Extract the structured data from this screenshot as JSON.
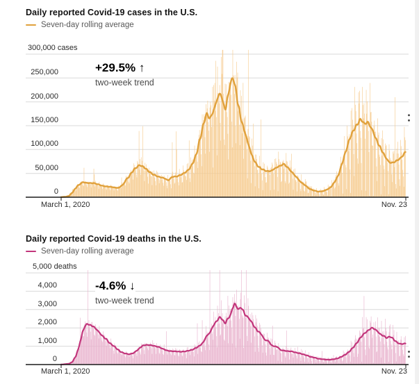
{
  "page": {
    "background": "#ffffff",
    "right_strip_color": "#f1f1f1"
  },
  "chart_data": [
    {
      "type": "bar+line",
      "title": "Daily reported Covid-19 cases in the U.S.",
      "legend": "Seven-day rolling average",
      "annotation": "+29.5% ↑",
      "annotation_sub": "two-week trend",
      "y_top_label": "300,000 cases",
      "x_start_label": "March 1, 2020",
      "x_end_label": "Nov. 23",
      "ylim": [
        0,
        300000
      ],
      "yticks": [
        {
          "label": "250,000",
          "value": 250000
        },
        {
          "label": "200,000",
          "value": 200000
        },
        {
          "label": "150,000",
          "value": 150000
        },
        {
          "label": "100,000",
          "value": 100000
        },
        {
          "label": "50,000",
          "value": 50000
        },
        {
          "label": "0",
          "value": 0
        }
      ],
      "line_color": "#E0A13C",
      "bar_color": "#F6CB8E",
      "axis_color": "#1a1a1a",
      "grid_color": "#d9d9d9",
      "days_total": 632,
      "end_marker_values": [
        172000,
        161000
      ],
      "avg_series_points": [
        [
          0,
          300
        ],
        [
          8,
          900
        ],
        [
          14,
          2500
        ],
        [
          20,
          9000
        ],
        [
          26,
          18000
        ],
        [
          31,
          25000
        ],
        [
          40,
          31500
        ],
        [
          47,
          30000
        ],
        [
          55,
          29500
        ],
        [
          60,
          29500
        ],
        [
          68,
          27000
        ],
        [
          75,
          24000
        ],
        [
          83,
          22500
        ],
        [
          92,
          21500
        ],
        [
          100,
          20000
        ],
        [
          105,
          19500
        ],
        [
          112,
          25000
        ],
        [
          122,
          40000
        ],
        [
          130,
          52000
        ],
        [
          135,
          60000
        ],
        [
          144,
          67000
        ],
        [
          150,
          64500
        ],
        [
          155,
          60000
        ],
        [
          162,
          53000
        ],
        [
          170,
          47000
        ],
        [
          180,
          42500
        ],
        [
          186,
          41000
        ],
        [
          190,
          39500
        ],
        [
          196,
          35500
        ],
        [
          205,
          43000
        ],
        [
          212,
          43500
        ],
        [
          220,
          47000
        ],
        [
          228,
          52000
        ],
        [
          235,
          59000
        ],
        [
          242,
          72000
        ],
        [
          248,
          90000
        ],
        [
          255,
          122000
        ],
        [
          261,
          152000
        ],
        [
          267,
          176000
        ],
        [
          271,
          167000
        ],
        [
          275,
          168000
        ],
        [
          281,
          186000
        ],
        [
          288,
          211000
        ],
        [
          293,
          218000
        ],
        [
          298,
          194000
        ],
        [
          302,
          184000
        ],
        [
          306,
          212000
        ],
        [
          310,
          235000
        ],
        [
          315,
          252000
        ],
        [
          320,
          230000
        ],
        [
          325,
          193000
        ],
        [
          331,
          160000
        ],
        [
          337,
          137000
        ],
        [
          344,
          110000
        ],
        [
          350,
          88000
        ],
        [
          356,
          73000
        ],
        [
          363,
          63000
        ],
        [
          370,
          58000
        ],
        [
          378,
          54500
        ],
        [
          385,
          55000
        ],
        [
          392,
          60000
        ],
        [
          400,
          65000
        ],
        [
          409,
          69500
        ],
        [
          416,
          62000
        ],
        [
          424,
          52000
        ],
        [
          432,
          42000
        ],
        [
          440,
          31500
        ],
        [
          448,
          25000
        ],
        [
          456,
          17500
        ],
        [
          464,
          14000
        ],
        [
          472,
          11800
        ],
        [
          480,
          12500
        ],
        [
          488,
          16000
        ],
        [
          495,
          21000
        ],
        [
          502,
          32000
        ],
        [
          509,
          46500
        ],
        [
          516,
          72000
        ],
        [
          523,
          98000
        ],
        [
          530,
          124000
        ],
        [
          537,
          141000
        ],
        [
          543,
          152000
        ],
        [
          549,
          163000
        ],
        [
          553,
          160000
        ],
        [
          557,
          153000
        ],
        [
          562,
          158000
        ],
        [
          567,
          150000
        ],
        [
          572,
          139000
        ],
        [
          578,
          122000
        ],
        [
          584,
          108000
        ],
        [
          590,
          95000
        ],
        [
          596,
          83000
        ],
        [
          602,
          73500
        ],
        [
          607,
          72000
        ],
        [
          612,
          74000
        ],
        [
          617,
          77500
        ],
        [
          622,
          81000
        ],
        [
          627,
          87000
        ],
        [
          632,
          95000
        ]
      ]
    },
    {
      "type": "bar+line",
      "title": "Daily reported Covid-19 deaths in the U.S.",
      "legend": "Seven-day rolling average",
      "annotation": "-4.6% ↓",
      "annotation_sub": "two-week trend",
      "y_top_label": "5,000 deaths",
      "x_start_label": "March 1, 2020",
      "x_end_label": "Nov. 23",
      "ylim": [
        0,
        5000
      ],
      "yticks": [
        {
          "label": "4,000",
          "value": 4000
        },
        {
          "label": "3,000",
          "value": 3000
        },
        {
          "label": "2,000",
          "value": 2000
        },
        {
          "label": "1,000",
          "value": 1000
        },
        {
          "label": "0",
          "value": 0
        }
      ],
      "line_color": "#C2357B",
      "bar_color": "#E9B3CE",
      "axis_color": "#1a1a1a",
      "grid_color": "#d9d9d9",
      "days_total": 632,
      "end_marker_values": [
        700,
        430
      ],
      "avg_series_points": [
        [
          0,
          5
        ],
        [
          14,
          40
        ],
        [
          20,
          130
        ],
        [
          26,
          400
        ],
        [
          31,
          800
        ],
        [
          36,
          1350
        ],
        [
          40,
          1850
        ],
        [
          44,
          2100
        ],
        [
          48,
          2230
        ],
        [
          53,
          2150
        ],
        [
          58,
          2100
        ],
        [
          64,
          1950
        ],
        [
          70,
          1750
        ],
        [
          76,
          1550
        ],
        [
          82,
          1400
        ],
        [
          90,
          1150
        ],
        [
          97,
          1000
        ],
        [
          104,
          820
        ],
        [
          110,
          680
        ],
        [
          118,
          600
        ],
        [
          125,
          560
        ],
        [
          132,
          620
        ],
        [
          140,
          780
        ],
        [
          146,
          950
        ],
        [
          152,
          1060
        ],
        [
          160,
          1070
        ],
        [
          166,
          1050
        ],
        [
          173,
          1000
        ],
        [
          180,
          950
        ],
        [
          187,
          850
        ],
        [
          195,
          760
        ],
        [
          202,
          730
        ],
        [
          210,
          720
        ],
        [
          218,
          700
        ],
        [
          226,
          710
        ],
        [
          233,
          750
        ],
        [
          240,
          800
        ],
        [
          247,
          900
        ],
        [
          254,
          1020
        ],
        [
          260,
          1180
        ],
        [
          267,
          1550
        ],
        [
          273,
          1750
        ],
        [
          280,
          2150
        ],
        [
          286,
          2400
        ],
        [
          292,
          2600
        ],
        [
          297,
          2400
        ],
        [
          301,
          2250
        ],
        [
          306,
          2500
        ],
        [
          311,
          2700
        ],
        [
          315,
          3100
        ],
        [
          318,
          3340
        ],
        [
          322,
          3150
        ],
        [
          326,
          3000
        ],
        [
          330,
          3130
        ],
        [
          334,
          2950
        ],
        [
          338,
          2700
        ],
        [
          344,
          2550
        ],
        [
          350,
          2300
        ],
        [
          356,
          2000
        ],
        [
          362,
          1800
        ],
        [
          368,
          1650
        ],
        [
          372,
          1400
        ],
        [
          376,
          1320
        ],
        [
          381,
          1280
        ],
        [
          386,
          1050
        ],
        [
          391,
          1000
        ],
        [
          397,
          960
        ],
        [
          403,
          790
        ],
        [
          409,
          760
        ],
        [
          416,
          730
        ],
        [
          423,
          720
        ],
        [
          430,
          660
        ],
        [
          437,
          620
        ],
        [
          444,
          560
        ],
        [
          451,
          500
        ],
        [
          458,
          420
        ],
        [
          465,
          380
        ],
        [
          472,
          320
        ],
        [
          479,
          295
        ],
        [
          486,
          270
        ],
        [
          493,
          265
        ],
        [
          500,
          290
        ],
        [
          507,
          330
        ],
        [
          514,
          420
        ],
        [
          521,
          530
        ],
        [
          528,
          680
        ],
        [
          535,
          900
        ],
        [
          542,
          1150
        ],
        [
          549,
          1450
        ],
        [
          556,
          1680
        ],
        [
          563,
          1850
        ],
        [
          570,
          2000
        ],
        [
          575,
          1950
        ],
        [
          580,
          1830
        ],
        [
          586,
          1650
        ],
        [
          592,
          1560
        ],
        [
          598,
          1450
        ],
        [
          603,
          1530
        ],
        [
          608,
          1450
        ],
        [
          613,
          1290
        ],
        [
          618,
          1180
        ],
        [
          623,
          1120
        ],
        [
          628,
          1130
        ],
        [
          632,
          1150
        ]
      ]
    }
  ]
}
